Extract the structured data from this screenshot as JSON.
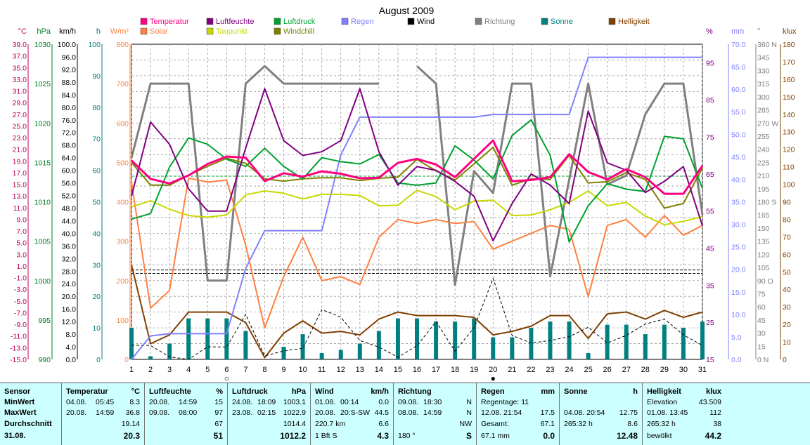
{
  "title": "August 2009",
  "legend": [
    {
      "label": "Temperatur",
      "color": "#ff0080",
      "group": "series"
    },
    {
      "label": "Luftfeuchte",
      "color": "#800080",
      "group": "series"
    },
    {
      "label": "Luftdruck",
      "color": "#00a030",
      "group": "series"
    },
    {
      "label": "Regen",
      "color": "#8080ff",
      "group": "series"
    },
    {
      "label": "Wind",
      "color": "#000000",
      "group": "series"
    },
    {
      "label": "Richtung",
      "color": "#808080",
      "group": "series"
    },
    {
      "label": "Sonne",
      "color": "#008080",
      "group": "series"
    },
    {
      "label": "Helligkeit",
      "color": "#804000",
      "group": "series"
    },
    {
      "label": "Solar",
      "color": "#ff8040",
      "group": "series"
    },
    {
      "label": "Taupunkt",
      "color": "#c8d800",
      "group": "series"
    },
    {
      "label": "Windchill",
      "color": "#808000",
      "group": "series"
    }
  ],
  "axes": {
    "temp": {
      "unit": "°C",
      "color": "#c00060",
      "ticks": [
        "39.0",
        "37.0",
        "35.0",
        "33.0",
        "31.0",
        "29.0",
        "27.0",
        "25.0",
        "23.0",
        "21.0",
        "19.0",
        "17.0",
        "15.0",
        "13.0",
        "11.0",
        "9.0",
        "7.0",
        "5.0",
        "3.0",
        "1.0",
        "-1.0",
        "-3.0",
        "-5.0",
        "-7.0",
        "-9.0",
        "-11.0",
        "-13.0",
        "-15.0"
      ]
    },
    "hpa": {
      "unit": "hPa",
      "color": "#008020",
      "ticks": [
        "1030",
        "1025",
        "1020",
        "1015",
        "1010",
        "1005",
        "1000",
        "995",
        "990"
      ]
    },
    "kmh": {
      "unit": "km/h",
      "color": "#000000",
      "ticks": [
        "100.0",
        "96.0",
        "92.0",
        "88.0",
        "84.0",
        "80.0",
        "76.0",
        "72.0",
        "68.0",
        "64.0",
        "60.0",
        "56.0",
        "52.0",
        "48.0",
        "44.0",
        "40.0",
        "36.0",
        "32.0",
        "28.0",
        "24.0",
        "20.0",
        "16.0",
        "12.0",
        "8.0",
        "4.0",
        "0.0"
      ]
    },
    "h": {
      "unit": "h",
      "color": "#008080",
      "ticks": [
        "100",
        "90",
        "80",
        "70",
        "60",
        "50",
        "40",
        "30",
        "20",
        "10",
        "0"
      ]
    },
    "wm2": {
      "unit": "W/m²",
      "color": "#ff8040",
      "ticks": [
        "800",
        "700",
        "600",
        "500",
        "400",
        "300",
        "200",
        "100",
        "0"
      ]
    },
    "pct": {
      "unit": "%",
      "color": "#800080",
      "ticks": [
        "95",
        "85",
        "75",
        "65",
        "55",
        "45",
        "35",
        "25",
        "15"
      ]
    },
    "mm": {
      "unit": "mm",
      "color": "#8080ff",
      "ticks": [
        "70.0",
        "65.0",
        "60.0",
        "55.0",
        "50.0",
        "45.0",
        "40.0",
        "35.0",
        "30.0",
        "25.0",
        "20.0",
        "15.0",
        "10.0",
        "5.0",
        "0.0"
      ]
    },
    "deg": {
      "unit": "°",
      "color": "#808080",
      "ticks": [
        "360 N",
        "345",
        "330",
        "315",
        "300",
        "285",
        "270 W",
        "255",
        "240",
        "225",
        "210",
        "195",
        "180 S",
        "165",
        "150",
        "135",
        "120",
        "105",
        "90 O",
        "75",
        "60",
        "45",
        "30",
        "15",
        "0 N"
      ]
    },
    "klux": {
      "unit": "klux",
      "color": "#804000",
      "ticks": [
        "180",
        "170",
        "160",
        "150",
        "140",
        "130",
        "120",
        "110",
        "100",
        "90",
        "80",
        "70",
        "60",
        "50",
        "40",
        "30",
        "20",
        "10",
        "0"
      ]
    }
  },
  "chart_data": {
    "type": "line",
    "title": "August 2009",
    "x": [
      1,
      2,
      3,
      4,
      5,
      6,
      7,
      8,
      9,
      10,
      11,
      12,
      13,
      14,
      15,
      16,
      17,
      18,
      19,
      20,
      21,
      22,
      23,
      24,
      25,
      26,
      27,
      28,
      29,
      30,
      31
    ],
    "x_range": [
      1,
      31
    ],
    "grid": true,
    "legend_placement": "top",
    "series": [
      {
        "name": "Temperatur",
        "unit": "°C",
        "color": "#ff0080",
        "width": 3,
        "values": [
          19.7,
          16.5,
          15.7,
          17.1,
          19.1,
          20.4,
          20.2,
          16.1,
          17.5,
          16.9,
          17.8,
          17.4,
          16.6,
          16.7,
          19.3,
          20.0,
          19.0,
          16.8,
          20.0,
          23.2,
          16.1,
          16.3,
          16.8,
          20.8,
          17.7,
          16.4,
          18.2,
          16.8,
          13.9,
          13.9,
          18.8
        ]
      },
      {
        "name": "Luftfeuchte",
        "unit": "%",
        "color": "#800080",
        "width": 2,
        "values": [
          59,
          79,
          73,
          61,
          55,
          55,
          72,
          88,
          74,
          70,
          71,
          74,
          88,
          71,
          62,
          67,
          66,
          63,
          59,
          47,
          57,
          65,
          62,
          57,
          82,
          68,
          66,
          60,
          63,
          67,
          51
        ]
      },
      {
        "name": "Luftdruck",
        "unit": "hPa",
        "color": "#00a030",
        "width": 2,
        "values": [
          1007.8,
          1008.5,
          1014.4,
          1018.1,
          1017.3,
          1015.4,
          1014.5,
          1016.8,
          1014.5,
          1012.9,
          1015.6,
          1015.1,
          1014.8,
          1016.0,
          1012.4,
          1012.1,
          1012.4,
          1017.1,
          1015.3,
          1012.9,
          1018.4,
          1020.4,
          1015.9,
          1004.9,
          1009.5,
          1012.3,
          1011.6,
          1011.3,
          1018.3,
          1018.0,
          1011.7
        ]
      },
      {
        "name": "Regen",
        "unit": "mm",
        "color": "#8080ff",
        "width": 2,
        "values": [
          0.0,
          5.2,
          5.7,
          5.7,
          5.7,
          5.7,
          20.2,
          28.6,
          28.6,
          28.6,
          28.6,
          45.4,
          53.8,
          53.8,
          53.8,
          53.8,
          53.8,
          53.8,
          53.8,
          54.4,
          54.4,
          54.4,
          54.4,
          54.4,
          67.1,
          67.1,
          67.1,
          67.1,
          67.1,
          67.1,
          67.1
        ]
      },
      {
        "name": "Wind",
        "unit": "km/h",
        "color": "#000000",
        "width": 1,
        "dashed": true,
        "values": [
          4.5,
          4.4,
          0.8,
          0.0,
          4.0,
          3.9,
          14.3,
          1.1,
          2.7,
          3.5,
          15.8,
          13.4,
          6.0,
          3.9,
          0.7,
          4.3,
          12.0,
          2.6,
          10.0,
          25.7,
          7.6,
          5.2,
          6.0,
          7.2,
          10.2,
          5.2,
          7.6,
          11.2,
          12.8,
          7.8,
          4.4
        ]
      },
      {
        "name": "Richtung",
        "unit": "°",
        "color": "#808080",
        "width": 3,
        "values": [
          230,
          315,
          315,
          315,
          90,
          90,
          315,
          335,
          315,
          315,
          315,
          315,
          315,
          315,
          null,
          335,
          315,
          85,
          215,
          190,
          315,
          315,
          95,
          205,
          315,
          200,
          210,
          280,
          315,
          315,
          165
        ]
      },
      {
        "name": "Sonne",
        "unit": "h",
        "color": "#008080",
        "type": "bar",
        "values": [
          10,
          1,
          5,
          13,
          13,
          13,
          9,
          0,
          4,
          8,
          2,
          3,
          5,
          9,
          13,
          13,
          12,
          12,
          13,
          7,
          7,
          10,
          12,
          12,
          2,
          11,
          11,
          8,
          11,
          10,
          12
        ]
      },
      {
        "name": "Helligkeit",
        "unit": "klux",
        "color": "#804000",
        "width": 2,
        "values": [
          54,
          9,
          14,
          27,
          27,
          27,
          21,
          1,
          15,
          22,
          15,
          16,
          14,
          23,
          27,
          25,
          25,
          25,
          24,
          14,
          16,
          19,
          25,
          25,
          12,
          26,
          27,
          23,
          28,
          24,
          27
        ]
      },
      {
        "name": "Solar",
        "unit": "W/m²",
        "color": "#ff8040",
        "width": 2,
        "values": [
          450,
          130,
          175,
          460,
          450,
          455,
          290,
          80,
          210,
          310,
          200,
          210,
          190,
          310,
          355,
          345,
          355,
          345,
          350,
          280,
          300,
          320,
          340,
          330,
          160,
          340,
          355,
          310,
          365,
          315,
          340
        ]
      },
      {
        "name": "Taupunkt",
        "unit": "°C",
        "color": "#c8d800",
        "width": 2,
        "values": [
          11.6,
          12.7,
          11.2,
          10.1,
          9.8,
          10.2,
          13.7,
          14.4,
          14.0,
          13.0,
          13.8,
          13.8,
          13.6,
          11.8,
          11.9,
          14.5,
          13.4,
          11.1,
          12.6,
          12.8,
          10.1,
          10.2,
          11.1,
          12.4,
          14.4,
          11.8,
          12.4,
          10.0,
          8.5,
          9.1,
          9.9
        ]
      },
      {
        "name": "Windchill",
        "unit": "°C",
        "color": "#808000",
        "width": 2,
        "values": [
          19.4,
          15.4,
          15.4,
          17.1,
          18.7,
          20.1,
          19.2,
          16.5,
          16.1,
          16.5,
          16.7,
          16.7,
          16.2,
          16.6,
          16.8,
          19.9,
          17.9,
          16.3,
          19.1,
          22.0,
          15.4,
          16.5,
          16.4,
          20.6,
          15.8,
          16.0,
          17.6,
          16.4,
          11.4,
          12.2,
          18.4
        ]
      }
    ],
    "reference_lines": [
      {
        "axis": "hpa",
        "value": 1013.25,
        "color": "#00a030",
        "dashed": true
      },
      {
        "axis": "temp",
        "value": 0.0,
        "color": "#000000",
        "dashed": true
      },
      {
        "axis": "temp",
        "value": 0.6,
        "color": "#000000",
        "dashed": true
      }
    ],
    "markers": [
      {
        "x": 6,
        "symbol": "○"
      },
      {
        "x": 20,
        "symbol": "●"
      }
    ]
  },
  "stats": {
    "sensor": {
      "header": "Sensor",
      "rows": [
        "MinWert",
        "MaxWert",
        "Durchschnitt",
        "31.08."
      ]
    },
    "temperatur": {
      "header": "Temperatur",
      "unit": "°C",
      "min": {
        "date": "04.08.",
        "time": "05:45",
        "value": "8.3"
      },
      "max": {
        "date": "20.08.",
        "time": "14:59",
        "value": "36.8"
      },
      "avg": "19.14",
      "today": "20.3"
    },
    "luftfeuchte": {
      "header": "Luftfeuchte",
      "unit": "%",
      "min": {
        "date": "20.08.",
        "time": "14:59",
        "value": "15"
      },
      "max": {
        "date": "09.08.",
        "time": "08:00",
        "value": "97"
      },
      "avg": "67",
      "today": "51"
    },
    "luftdruck": {
      "header": "Luftdruck",
      "unit": "hPa",
      "min": {
        "date": "24.08.",
        "time": "18:09",
        "value": "1003.1"
      },
      "max": {
        "date": "23.08.",
        "time": "02:15",
        "value": "1022.9"
      },
      "avg": "1014.4",
      "today": "1012.2"
    },
    "wind": {
      "header": "Wind",
      "unit": "km/h",
      "min": {
        "date": "01.08.",
        "time": "00:14",
        "value": "0.0"
      },
      "max": {
        "date": "20.08.",
        "time": "20:S-SW",
        "value": "44.5"
      },
      "avg": {
        "label": "220.7 km",
        "value": "6.6"
      },
      "today": {
        "label": "1 Bft S",
        "value": "4.3"
      }
    },
    "richtung": {
      "header": "Richtung",
      "min": {
        "date": "09.08.",
        "time": "18:30",
        "value": "N"
      },
      "max": {
        "date": "08.08.",
        "time": "14:59",
        "value": "N"
      },
      "avg": "NW",
      "today": {
        "label": "180 °",
        "value": "S"
      }
    },
    "regen": {
      "header": "Regen",
      "unit": "mm",
      "min": {
        "label": "Regentage: 11"
      },
      "max": {
        "label": "12.08.  21:54",
        "value": "17.5"
      },
      "avg": {
        "label": "Gesamt:",
        "value": "67.1"
      },
      "today": {
        "label": "67.1 mm",
        "value": "0.0"
      }
    },
    "sonne": {
      "header": "Sonne",
      "unit": "h",
      "max": {
        "label": "04.08.  20:54",
        "value": "12.75"
      },
      "avg": {
        "label": "265:32 h",
        "value": "8.6"
      },
      "today": "12.48"
    },
    "helligkeit": {
      "header": "Helligkeit",
      "unit": "klux",
      "min": {
        "label": "Elevation",
        "value": "43.509"
      },
      "max": {
        "label": "01.08.  13:45",
        "value": "112"
      },
      "avg": {
        "label": "265:32 h",
        "value": "38"
      },
      "today": {
        "label": "bewölkt",
        "value": "44.2"
      }
    }
  }
}
